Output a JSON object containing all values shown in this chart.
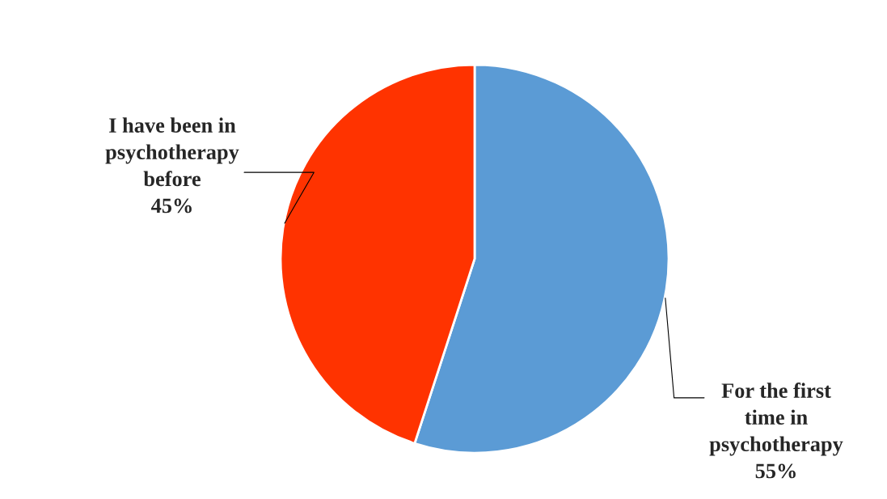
{
  "chart_data": {
    "type": "pie",
    "categories": [
      "For the first\ntime in\npsychotherapy",
      "I have been in\npsychotherapy\nbefore"
    ],
    "values": [
      55,
      45
    ],
    "colors": [
      "#5b9bd5",
      "#ff3300"
    ],
    "value_labels": [
      "55%",
      "45%"
    ],
    "legend": false
  }
}
